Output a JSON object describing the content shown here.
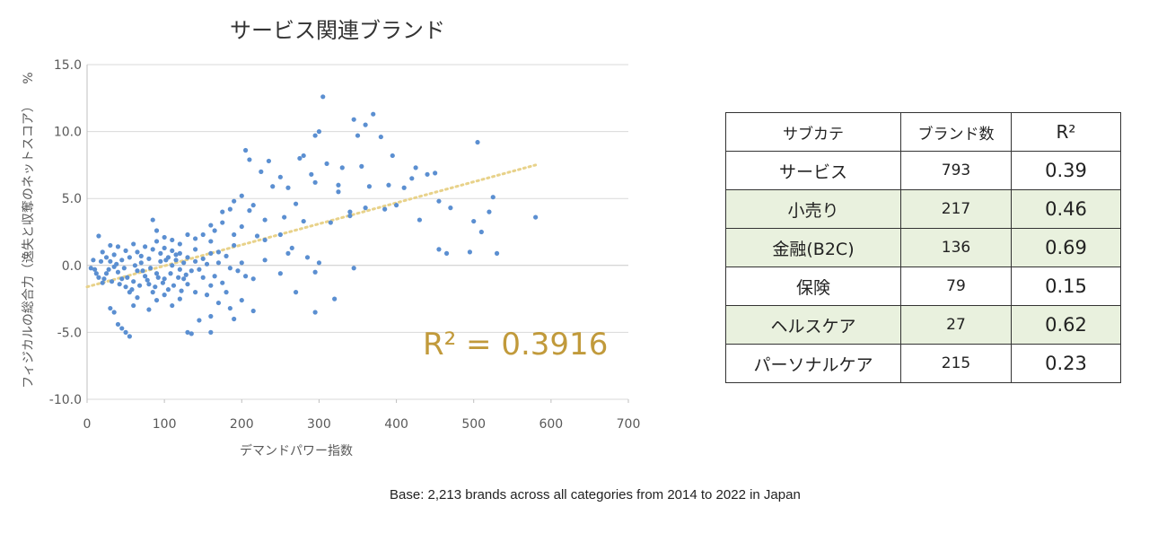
{
  "chart_data": {
    "type": "scatter",
    "title": "サービス関連ブランド",
    "xlabel": "デマンドパワー指数",
    "ylabel": "フィジカルの総合力（逸失と収奪のネットスコア）",
    "ylabel_unit": "%",
    "xlim": [
      0,
      700
    ],
    "ylim": [
      -10,
      15
    ],
    "x_ticks": [
      "0",
      "100",
      "200",
      "300",
      "400",
      "500",
      "600",
      "700"
    ],
    "y_ticks": [
      "15.0",
      "10.0",
      "5.0",
      "0.0",
      "-5.0",
      "-10.0"
    ],
    "grid": "horizontal",
    "point_color": "#5B8FD1",
    "trendline": {
      "style": "dotted",
      "color": "#E8D28A",
      "x": [
        0,
        580
      ],
      "y": [
        -1.6,
        7.5
      ]
    },
    "r_squared_label": "R² = 0.3916",
    "r_squared_color": "#C19A3B",
    "points": [
      [
        305,
        12.6
      ],
      [
        370,
        11.3
      ],
      [
        345,
        10.9
      ],
      [
        360,
        10.5
      ],
      [
        300,
        10.0
      ],
      [
        295,
        9.7
      ],
      [
        350,
        9.7
      ],
      [
        380,
        9.6
      ],
      [
        505,
        9.2
      ],
      [
        205,
        8.6
      ],
      [
        395,
        8.2
      ],
      [
        275,
        8.0
      ],
      [
        280,
        8.2
      ],
      [
        210,
        7.9
      ],
      [
        235,
        7.8
      ],
      [
        310,
        7.6
      ],
      [
        355,
        7.4
      ],
      [
        330,
        7.3
      ],
      [
        425,
        7.3
      ],
      [
        450,
        6.9
      ],
      [
        225,
        7.0
      ],
      [
        290,
        6.8
      ],
      [
        250,
        6.6
      ],
      [
        420,
        6.5
      ],
      [
        440,
        6.8
      ],
      [
        295,
        6.2
      ],
      [
        325,
        6.0
      ],
      [
        390,
        6.0
      ],
      [
        365,
        5.9
      ],
      [
        410,
        5.8
      ],
      [
        240,
        5.9
      ],
      [
        260,
        5.8
      ],
      [
        525,
        5.1
      ],
      [
        200,
        5.2
      ],
      [
        190,
        4.8
      ],
      [
        185,
        4.2
      ],
      [
        215,
        4.5
      ],
      [
        270,
        4.6
      ],
      [
        325,
        5.5
      ],
      [
        340,
        4.0
      ],
      [
        360,
        4.3
      ],
      [
        385,
        4.2
      ],
      [
        400,
        4.5
      ],
      [
        455,
        4.8
      ],
      [
        470,
        4.3
      ],
      [
        520,
        4.0
      ],
      [
        580,
        3.6
      ],
      [
        315,
        3.2
      ],
      [
        340,
        3.7
      ],
      [
        430,
        3.4
      ],
      [
        175,
        4.0
      ],
      [
        210,
        4.1
      ],
      [
        230,
        3.4
      ],
      [
        255,
        3.6
      ],
      [
        280,
        3.3
      ],
      [
        500,
        3.3
      ],
      [
        510,
        2.5
      ],
      [
        175,
        3.2
      ],
      [
        160,
        3.0
      ],
      [
        165,
        2.6
      ],
      [
        200,
        2.9
      ],
      [
        190,
        2.3
      ],
      [
        220,
        2.2
      ],
      [
        250,
        2.3
      ],
      [
        150,
        2.3
      ],
      [
        130,
        2.3
      ],
      [
        140,
        2.0
      ],
      [
        85,
        3.4
      ],
      [
        90,
        2.6
      ],
      [
        100,
        2.1
      ],
      [
        110,
        1.9
      ],
      [
        120,
        1.6
      ],
      [
        160,
        1.8
      ],
      [
        190,
        1.5
      ],
      [
        230,
        1.9
      ],
      [
        265,
        1.3
      ],
      [
        455,
        1.2
      ],
      [
        465,
        0.9
      ],
      [
        495,
        1.0
      ],
      [
        530,
        0.9
      ],
      [
        260,
        0.9
      ],
      [
        285,
        0.6
      ],
      [
        300,
        0.2
      ],
      [
        345,
        -0.2
      ],
      [
        180,
        0.7
      ],
      [
        200,
        0.2
      ],
      [
        195,
        -0.4
      ],
      [
        205,
        -0.8
      ],
      [
        215,
        -1.0
      ],
      [
        230,
        0.4
      ],
      [
        250,
        -0.6
      ],
      [
        140,
        1.2
      ],
      [
        150,
        0.5
      ],
      [
        160,
        0.9
      ],
      [
        170,
        1.0
      ],
      [
        145,
        -0.3
      ],
      [
        165,
        -0.8
      ],
      [
        175,
        -1.3
      ],
      [
        180,
        -2.0
      ],
      [
        160,
        -1.5
      ],
      [
        155,
        -2.2
      ],
      [
        140,
        -2.0
      ],
      [
        130,
        -1.4
      ],
      [
        120,
        -2.5
      ],
      [
        110,
        -3.0
      ],
      [
        100,
        -2.2
      ],
      [
        90,
        -2.6
      ],
      [
        80,
        -3.3
      ],
      [
        65,
        -2.4
      ],
      [
        170,
        -2.8
      ],
      [
        185,
        -3.2
      ],
      [
        200,
        -2.6
      ],
      [
        215,
        -3.4
      ],
      [
        160,
        -3.8
      ],
      [
        145,
        -4.1
      ],
      [
        130,
        -5.0
      ],
      [
        135,
        -5.1
      ],
      [
        160,
        -5.0
      ],
      [
        190,
        -4.0
      ],
      [
        270,
        -2.0
      ],
      [
        295,
        -0.5
      ],
      [
        295,
        -3.5
      ],
      [
        320,
        -2.5
      ],
      [
        40,
        -4.4
      ],
      [
        45,
        -4.7
      ],
      [
        50,
        -5.0
      ],
      [
        55,
        -5.3
      ],
      [
        30,
        -3.2
      ],
      [
        35,
        -3.5
      ],
      [
        60,
        -3.0
      ],
      [
        10,
        -0.3
      ],
      [
        15,
        -0.9
      ],
      [
        20,
        -1.3
      ],
      [
        25,
        -0.6
      ],
      [
        30,
        0.3
      ],
      [
        35,
        -0.1
      ],
      [
        40,
        -0.5
      ],
      [
        45,
        -1.0
      ],
      [
        50,
        -1.6
      ],
      [
        55,
        -2.0
      ],
      [
        60,
        -1.2
      ],
      [
        65,
        -0.4
      ],
      [
        70,
        0.2
      ],
      [
        75,
        -0.8
      ],
      [
        80,
        -1.4
      ],
      [
        85,
        -2.0
      ],
      [
        90,
        -0.6
      ],
      [
        95,
        0.3
      ],
      [
        100,
        -1.0
      ],
      [
        105,
        -1.8
      ],
      [
        110,
        0.0
      ],
      [
        115,
        0.8
      ],
      [
        120,
        -0.3
      ],
      [
        125,
        -1.0
      ],
      [
        15,
        2.2
      ],
      [
        20,
        1.0
      ],
      [
        25,
        0.6
      ],
      [
        30,
        1.5
      ],
      [
        35,
        0.8
      ],
      [
        40,
        1.4
      ],
      [
        45,
        0.4
      ],
      [
        50,
        1.1
      ],
      [
        55,
        0.6
      ],
      [
        60,
        1.6
      ],
      [
        65,
        1.0
      ],
      [
        70,
        0.7
      ],
      [
        75,
        1.4
      ],
      [
        80,
        0.5
      ],
      [
        85,
        1.2
      ],
      [
        90,
        1.8
      ],
      [
        95,
        0.9
      ],
      [
        100,
        1.3
      ],
      [
        105,
        0.6
      ],
      [
        110,
        1.1
      ],
      [
        115,
        0.4
      ],
      [
        120,
        0.9
      ],
      [
        125,
        0.2
      ],
      [
        130,
        0.6
      ],
      [
        135,
        -0.4
      ],
      [
        140,
        0.3
      ],
      [
        150,
        -0.9
      ],
      [
        155,
        0.1
      ],
      [
        170,
        0.2
      ],
      [
        185,
        -0.2
      ],
      [
        5,
        -0.2
      ],
      [
        8,
        0.4
      ],
      [
        12,
        -0.6
      ],
      [
        18,
        0.3
      ],
      [
        22,
        -1.0
      ],
      [
        28,
        -0.3
      ],
      [
        32,
        -1.2
      ],
      [
        38,
        0.1
      ],
      [
        42,
        -1.4
      ],
      [
        48,
        -0.2
      ],
      [
        52,
        -0.9
      ],
      [
        58,
        -1.8
      ],
      [
        62,
        0.0
      ],
      [
        68,
        -1.5
      ],
      [
        72,
        -0.4
      ],
      [
        78,
        -1.1
      ],
      [
        82,
        -0.2
      ],
      [
        88,
        -1.6
      ],
      [
        92,
        -0.9
      ],
      [
        98,
        -1.3
      ],
      [
        102,
        0.4
      ],
      [
        108,
        -0.6
      ],
      [
        112,
        -1.5
      ],
      [
        118,
        -0.9
      ],
      [
        122,
        -1.9
      ],
      [
        128,
        -0.7
      ]
    ]
  },
  "table": {
    "headers": {
      "category": "サブカテ",
      "count": "ブランド数",
      "r2": "R²"
    },
    "rows": [
      {
        "category": "サービス",
        "count": "793",
        "r2": "0.39"
      },
      {
        "category": "小売り",
        "count": "217",
        "r2": "0.46"
      },
      {
        "category": "金融(B2C)",
        "count": "136",
        "r2": "0.69"
      },
      {
        "category": "保険",
        "count": "79",
        "r2": "0.15"
      },
      {
        "category": "ヘルスケア",
        "count": "27",
        "r2": "0.62"
      },
      {
        "category": "パーソナルケア",
        "count": "215",
        "r2": "0.23"
      }
    ],
    "shaded_color": "#E9F1DE"
  },
  "footnote": "Base: 2,213 brands across all categories from 2014 to 2022 in Japan"
}
